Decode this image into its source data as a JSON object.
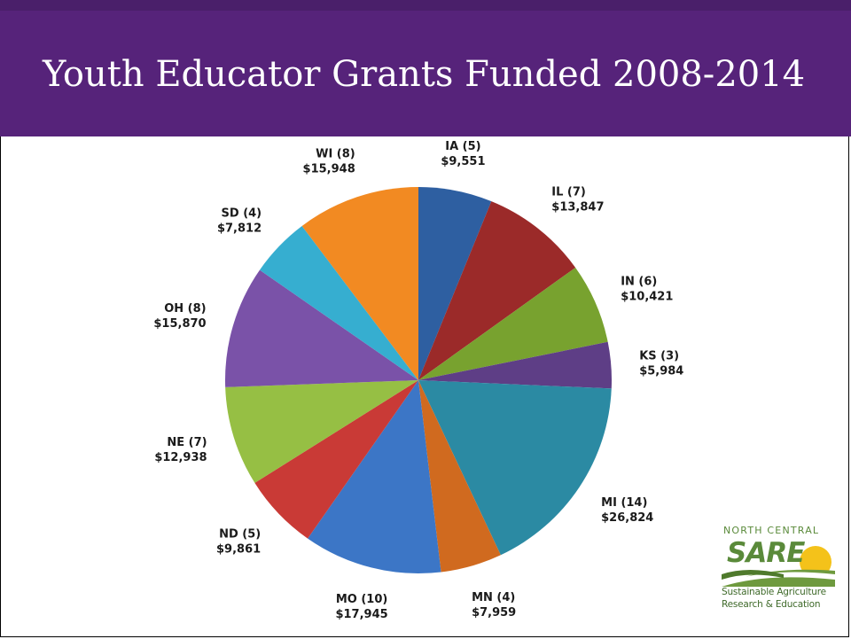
{
  "slide": {
    "title": "Youth Educator Grants Funded 2008-2014"
  },
  "logo": {
    "top_text": "NORTH CENTRAL",
    "mark": "SARE",
    "line1": "Sustainable Agriculture",
    "line2": "Research & Education"
  },
  "colors": {
    "title_band": "#56237a",
    "logo_green": "#5a8a3a",
    "logo_sun": "#f4c21a"
  },
  "chart_data": {
    "type": "pie",
    "title": "",
    "slices": [
      {
        "label": "IA (5)",
        "value_label": "$9,551",
        "value": 9551,
        "color": "#2e5fa1"
      },
      {
        "label": "IL (7)",
        "value_label": "$13,847",
        "value": 13847,
        "color": "#9b2a29"
      },
      {
        "label": "IN (6)",
        "value_label": "$10,421",
        "value": 10421,
        "color": "#78a22f"
      },
      {
        "label": "KS (3)",
        "value_label": "$5,984",
        "value": 5984,
        "color": "#5e3e86"
      },
      {
        "label": "MI (14)",
        "value_label": "$26,824",
        "value": 26824,
        "color": "#2b8aa3"
      },
      {
        "label": "MN (4)",
        "value_label": "$7,959",
        "value": 7959,
        "color": "#d06a1f"
      },
      {
        "label": "MO (10)",
        "value_label": "$17,945",
        "value": 17945,
        "color": "#3c76c6"
      },
      {
        "label": "ND (5)",
        "value_label": "$9,861",
        "value": 9861,
        "color": "#c93a36"
      },
      {
        "label": "NE (7)",
        "value_label": "$12,938",
        "value": 12938,
        "color": "#96bf44"
      },
      {
        "label": "OH (8)",
        "value_label": "$15,870",
        "value": 15870,
        "color": "#7a52a8"
      },
      {
        "label": "SD (4)",
        "value_label": "$7,812",
        "value": 7812,
        "color": "#36aed0"
      },
      {
        "label": "WI (8)",
        "value_label": "$15,948",
        "value": 15948,
        "color": "#f28a22"
      }
    ]
  }
}
